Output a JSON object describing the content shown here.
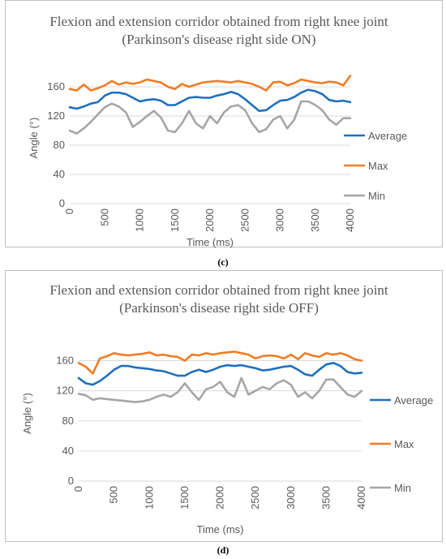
{
  "colors": {
    "average": "#1f6fc0",
    "max": "#f07c24",
    "min": "#a6a6a6",
    "grid": "#d9d9d9",
    "text": "#595959"
  },
  "chart_data": [
    {
      "type": "line",
      "title": "Flexion and extension corridor obtained from right knee joint (Parkinson's disease right side ON)",
      "caption": "(c)",
      "xlabel": "Time (ms)",
      "ylabel": "Angle (°)",
      "xlim": [
        0,
        4000
      ],
      "ylim": [
        0,
        180
      ],
      "xticks": [
        0,
        500,
        1000,
        1500,
        2000,
        2500,
        3000,
        3500,
        4000
      ],
      "yticks": [
        0,
        40,
        80,
        120,
        160
      ],
      "grid": "horizontal",
      "legend_position": "right",
      "x": [
        0,
        100,
        200,
        300,
        400,
        500,
        600,
        700,
        800,
        900,
        1000,
        1100,
        1200,
        1300,
        1400,
        1500,
        1600,
        1700,
        1800,
        1900,
        2000,
        2100,
        2200,
        2300,
        2400,
        2500,
        2600,
        2700,
        2800,
        2900,
        3000,
        3100,
        3200,
        3300,
        3400,
        3500,
        3600,
        3700,
        3800,
        3900,
        4000
      ],
      "series": [
        {
          "name": "Average",
          "color_key": "average",
          "values": [
            132,
            130,
            133,
            137,
            139,
            148,
            152,
            152,
            150,
            145,
            140,
            142,
            143,
            141,
            135,
            135,
            140,
            145,
            146,
            145,
            145,
            148,
            150,
            153,
            150,
            143,
            135,
            127,
            128,
            135,
            141,
            142,
            146,
            152,
            156,
            154,
            150,
            142,
            140,
            141,
            139
          ]
        },
        {
          "name": "Max",
          "color_key": "max",
          "values": [
            157,
            155,
            163,
            155,
            158,
            162,
            168,
            163,
            166,
            164,
            166,
            170,
            168,
            166,
            160,
            157,
            164,
            160,
            163,
            166,
            167,
            168,
            167,
            166,
            168,
            166,
            164,
            160,
            155,
            166,
            167,
            162,
            165,
            170,
            168,
            166,
            165,
            167,
            166,
            162,
            175
          ]
        },
        {
          "name": "Min",
          "color_key": "min",
          "values": [
            100,
            96,
            103,
            112,
            122,
            132,
            137,
            133,
            125,
            105,
            112,
            120,
            127,
            118,
            100,
            98,
            110,
            127,
            110,
            103,
            120,
            110,
            125,
            133,
            135,
            128,
            110,
            98,
            102,
            115,
            120,
            103,
            115,
            140,
            140,
            135,
            128,
            115,
            108,
            117,
            117
          ]
        }
      ]
    },
    {
      "type": "line",
      "title": "Flexion and extension corridor obtained from right knee joint (Parkinson's disease right side OFF)",
      "caption": "(d)",
      "xlabel": "Time (ms)",
      "ylabel": "Angle (°)",
      "xlim": [
        0,
        4000
      ],
      "ylim": [
        0,
        180
      ],
      "xticks": [
        0,
        500,
        1000,
        1500,
        2000,
        2500,
        3000,
        3500,
        4000
      ],
      "yticks": [
        0,
        40,
        80,
        120,
        160
      ],
      "grid": "horizontal",
      "legend_position": "right",
      "x": [
        0,
        100,
        200,
        300,
        400,
        500,
        600,
        700,
        800,
        900,
        1000,
        1100,
        1200,
        1300,
        1400,
        1500,
        1600,
        1700,
        1800,
        1900,
        2000,
        2100,
        2200,
        2300,
        2400,
        2500,
        2600,
        2700,
        2800,
        2900,
        3000,
        3100,
        3200,
        3300,
        3400,
        3500,
        3600,
        3700,
        3800,
        3900,
        4000
      ],
      "series": [
        {
          "name": "Average",
          "color_key": "average",
          "values": [
            137,
            130,
            128,
            133,
            140,
            148,
            153,
            153,
            151,
            150,
            149,
            147,
            146,
            143,
            140,
            140,
            145,
            148,
            145,
            148,
            152,
            154,
            153,
            154,
            152,
            150,
            147,
            148,
            150,
            152,
            153,
            148,
            142,
            140,
            148,
            155,
            157,
            153,
            145,
            143,
            144
          ]
        },
        {
          "name": "Max",
          "color_key": "max",
          "values": [
            157,
            152,
            143,
            163,
            166,
            170,
            168,
            167,
            168,
            169,
            171,
            167,
            168,
            166,
            165,
            160,
            168,
            167,
            170,
            168,
            170,
            171,
            172,
            170,
            168,
            163,
            166,
            167,
            166,
            163,
            168,
            162,
            170,
            167,
            165,
            170,
            168,
            170,
            167,
            162,
            160
          ]
        },
        {
          "name": "Min",
          "color_key": "min",
          "values": [
            116,
            114,
            108,
            110,
            109,
            108,
            107,
            106,
            105,
            106,
            108,
            112,
            115,
            112,
            118,
            130,
            118,
            108,
            122,
            125,
            132,
            118,
            112,
            137,
            115,
            120,
            125,
            122,
            130,
            134,
            128,
            112,
            118,
            110,
            120,
            135,
            135,
            125,
            115,
            112,
            120
          ]
        }
      ]
    }
  ]
}
